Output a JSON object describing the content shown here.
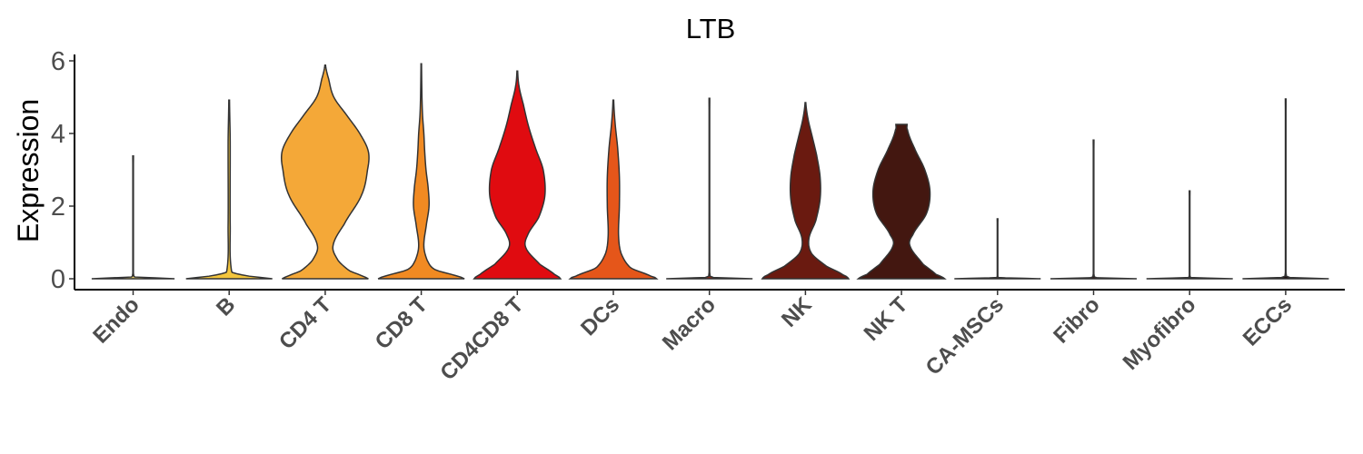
{
  "chart_data": {
    "type": "violin",
    "title": "LTB",
    "xlabel": "",
    "ylabel": "Expression",
    "ylim": [
      -0.3,
      6.2
    ],
    "yticks": [
      0,
      2,
      4,
      6
    ],
    "grid": false,
    "legend": "none",
    "categories": [
      "Endo",
      "B",
      "CD4 T",
      "CD8 T",
      "CD4CD8 T",
      "DCs",
      "Macro",
      "NK",
      "NK T",
      "CA-MSCs",
      "Fibro",
      "Myofibro",
      "ECCs"
    ],
    "colors": [
      "#EDD36A",
      "#F3C53C",
      "#F4A838",
      "#F18A22",
      "#E00B10",
      "#E5561A",
      "#8B2A15",
      "#6A1A10",
      "#431710",
      "#3A1510",
      "#2E1410",
      "#261210",
      "#1E1010"
    ],
    "series": [
      {
        "category": "Endo",
        "max": 3.38,
        "profile": [
          [
            0,
            0.48
          ],
          [
            0.05,
            0.01
          ],
          [
            3.38,
            0.004
          ]
        ]
      },
      {
        "category": "B",
        "max": 4.92,
        "profile": [
          [
            0,
            0.5
          ],
          [
            0.02,
            0.42
          ],
          [
            0.08,
            0.2
          ],
          [
            0.18,
            0.03
          ],
          [
            1.5,
            0.012
          ],
          [
            3.8,
            0.012
          ],
          [
            4.92,
            0.004
          ]
        ]
      },
      {
        "category": "CD4 T",
        "max": 5.88,
        "profile": [
          [
            0,
            0.5
          ],
          [
            0.05,
            0.45
          ],
          [
            0.22,
            0.28
          ],
          [
            0.5,
            0.15
          ],
          [
            0.9,
            0.09
          ],
          [
            1.5,
            0.22
          ],
          [
            2.3,
            0.42
          ],
          [
            3.0,
            0.49
          ],
          [
            3.5,
            0.5
          ],
          [
            4.0,
            0.4
          ],
          [
            4.5,
            0.25
          ],
          [
            5.0,
            0.1
          ],
          [
            5.5,
            0.04
          ],
          [
            5.88,
            0.004
          ]
        ]
      },
      {
        "category": "CD8 T",
        "max": 5.92,
        "profile": [
          [
            0,
            0.5
          ],
          [
            0.05,
            0.44
          ],
          [
            0.25,
            0.16
          ],
          [
            0.5,
            0.07
          ],
          [
            0.9,
            0.03
          ],
          [
            1.5,
            0.06
          ],
          [
            2.0,
            0.09
          ],
          [
            2.5,
            0.08
          ],
          [
            3.0,
            0.055
          ],
          [
            3.5,
            0.04
          ],
          [
            4.0,
            0.03
          ],
          [
            4.5,
            0.015
          ],
          [
            5.0,
            0.008
          ],
          [
            5.92,
            0.003
          ]
        ]
      },
      {
        "category": "CD4CD8 T",
        "max": 5.72,
        "profile": [
          [
            0,
            0.5
          ],
          [
            0.1,
            0.44
          ],
          [
            0.4,
            0.26
          ],
          [
            0.85,
            0.1
          ],
          [
            1.2,
            0.12
          ],
          [
            1.7,
            0.25
          ],
          [
            2.3,
            0.32
          ],
          [
            3.0,
            0.3
          ],
          [
            3.6,
            0.21
          ],
          [
            4.2,
            0.13
          ],
          [
            4.8,
            0.07
          ],
          [
            5.3,
            0.02
          ],
          [
            5.72,
            0.004
          ]
        ]
      },
      {
        "category": "DCs",
        "max": 4.92,
        "profile": [
          [
            0,
            0.5
          ],
          [
            0.05,
            0.45
          ],
          [
            0.3,
            0.2
          ],
          [
            0.7,
            0.09
          ],
          [
            1.2,
            0.06
          ],
          [
            2.0,
            0.07
          ],
          [
            2.8,
            0.07
          ],
          [
            3.6,
            0.05
          ],
          [
            4.3,
            0.02
          ],
          [
            4.92,
            0.004
          ]
        ]
      },
      {
        "category": "Macro",
        "max": 4.97,
        "profile": [
          [
            0,
            0.5
          ],
          [
            0.04,
            0.01
          ],
          [
            4.97,
            0.004
          ]
        ]
      },
      {
        "category": "NK",
        "max": 4.85,
        "profile": [
          [
            0,
            0.5
          ],
          [
            0.1,
            0.44
          ],
          [
            0.35,
            0.24
          ],
          [
            0.7,
            0.07
          ],
          [
            1.1,
            0.04
          ],
          [
            1.6,
            0.12
          ],
          [
            2.2,
            0.17
          ],
          [
            2.8,
            0.17
          ],
          [
            3.4,
            0.13
          ],
          [
            3.9,
            0.08
          ],
          [
            4.4,
            0.03
          ],
          [
            4.85,
            0.004
          ]
        ]
      },
      {
        "category": "NK T",
        "max": 4.25,
        "profile": [
          [
            0,
            0.5
          ],
          [
            0.12,
            0.4
          ],
          [
            0.4,
            0.25
          ],
          [
            0.9,
            0.1
          ],
          [
            1.2,
            0.13
          ],
          [
            1.8,
            0.29
          ],
          [
            2.4,
            0.33
          ],
          [
            3.0,
            0.27
          ],
          [
            3.6,
            0.15
          ],
          [
            4.1,
            0.07
          ],
          [
            4.25,
            0.065
          ]
        ]
      },
      {
        "category": "CA-MSCs",
        "max": 1.65,
        "profile": [
          [
            0,
            0.5
          ],
          [
            0.03,
            0.01
          ],
          [
            1.65,
            0.004
          ]
        ]
      },
      {
        "category": "Fibro",
        "max": 3.82,
        "profile": [
          [
            0,
            0.5
          ],
          [
            0.03,
            0.01
          ],
          [
            3.82,
            0.004
          ]
        ]
      },
      {
        "category": "Myofibro",
        "max": 2.42,
        "profile": [
          [
            0,
            0.5
          ],
          [
            0.03,
            0.01
          ],
          [
            2.42,
            0.004
          ]
        ]
      },
      {
        "category": "ECCs",
        "max": 4.95,
        "profile": [
          [
            0,
            0.5
          ],
          [
            0.04,
            0.01
          ],
          [
            4.95,
            0.004
          ]
        ]
      }
    ]
  }
}
